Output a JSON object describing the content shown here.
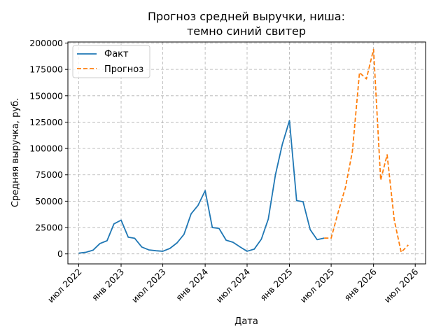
{
  "chart_data": {
    "type": "line",
    "title_lines": [
      "Прогноз средней выручки, ниша:",
      "темно синий свитер"
    ],
    "xlabel": "Дата",
    "ylabel": "Средняя выручка, руб.",
    "x_ticks": [
      {
        "date": "2022-07-01",
        "label": "июл 2022"
      },
      {
        "date": "2023-01-01",
        "label": "янв 2023"
      },
      {
        "date": "2023-07-01",
        "label": "июл 2023"
      },
      {
        "date": "2024-01-01",
        "label": "янв 2024"
      },
      {
        "date": "2024-07-01",
        "label": "июл 2024"
      },
      {
        "date": "2025-01-01",
        "label": "янв 2025"
      },
      {
        "date": "2025-07-01",
        "label": "июл 2025"
      },
      {
        "date": "2026-01-01",
        "label": "янв 2026"
      },
      {
        "date": "2026-07-01",
        "label": "июл 2026"
      }
    ],
    "y_ticks": [
      0,
      25000,
      50000,
      75000,
      100000,
      125000,
      150000,
      175000,
      200000
    ],
    "xlim": [
      "2022-05-15",
      "2026-08-15"
    ],
    "ylim": [
      -9500,
      201000
    ],
    "grid": true,
    "legend_position": "top-left",
    "series": [
      {
        "name": "Факт",
        "color": "#1f77b4",
        "style": "solid",
        "points": [
          {
            "x": "2022-07-01",
            "y": 700
          },
          {
            "x": "2022-08-01",
            "y": 1500
          },
          {
            "x": "2022-09-01",
            "y": 3500
          },
          {
            "x": "2022-10-01",
            "y": 9800
          },
          {
            "x": "2022-11-01",
            "y": 12500
          },
          {
            "x": "2022-12-01",
            "y": 28500
          },
          {
            "x": "2023-01-01",
            "y": 32000
          },
          {
            "x": "2023-02-01",
            "y": 15800
          },
          {
            "x": "2023-03-01",
            "y": 14800
          },
          {
            "x": "2023-04-01",
            "y": 6500
          },
          {
            "x": "2023-05-01",
            "y": 3800
          },
          {
            "x": "2023-06-01",
            "y": 3000
          },
          {
            "x": "2023-07-01",
            "y": 2500
          },
          {
            "x": "2023-08-01",
            "y": 5200
          },
          {
            "x": "2023-09-01",
            "y": 10500
          },
          {
            "x": "2023-10-01",
            "y": 18500
          },
          {
            "x": "2023-11-01",
            "y": 38000
          },
          {
            "x": "2023-12-01",
            "y": 46000
          },
          {
            "x": "2024-01-01",
            "y": 60000
          },
          {
            "x": "2024-02-01",
            "y": 25000
          },
          {
            "x": "2024-03-01",
            "y": 24200
          },
          {
            "x": "2024-04-01",
            "y": 13000
          },
          {
            "x": "2024-05-01",
            "y": 11000
          },
          {
            "x": "2024-06-01",
            "y": 6500
          },
          {
            "x": "2024-07-01",
            "y": 2500
          },
          {
            "x": "2024-08-01",
            "y": 4500
          },
          {
            "x": "2024-09-01",
            "y": 14000
          },
          {
            "x": "2024-10-01",
            "y": 33000
          },
          {
            "x": "2024-11-01",
            "y": 75000
          },
          {
            "x": "2024-12-01",
            "y": 104000
          },
          {
            "x": "2025-01-01",
            "y": 126500
          },
          {
            "x": "2025-02-01",
            "y": 50500
          },
          {
            "x": "2025-03-01",
            "y": 49500
          },
          {
            "x": "2025-04-01",
            "y": 23000
          },
          {
            "x": "2025-05-01",
            "y": 13500
          },
          {
            "x": "2025-06-01",
            "y": 15000
          }
        ]
      },
      {
        "name": "Прогноз",
        "color": "#ff7f0e",
        "style": "dashed",
        "points": [
          {
            "x": "2025-06-01",
            "y": 15000
          },
          {
            "x": "2025-07-01",
            "y": 15000
          },
          {
            "x": "2025-08-01",
            "y": 40000
          },
          {
            "x": "2025-09-01",
            "y": 63000
          },
          {
            "x": "2025-10-01",
            "y": 97000
          },
          {
            "x": "2025-11-01",
            "y": 172000
          },
          {
            "x": "2025-12-01",
            "y": 166000
          },
          {
            "x": "2026-01-01",
            "y": 194000
          },
          {
            "x": "2026-02-01",
            "y": 70000
          },
          {
            "x": "2026-03-01",
            "y": 94000
          },
          {
            "x": "2026-04-01",
            "y": 32000
          },
          {
            "x": "2026-05-01",
            "y": 1500
          },
          {
            "x": "2026-06-01",
            "y": 8500
          }
        ]
      }
    ]
  }
}
